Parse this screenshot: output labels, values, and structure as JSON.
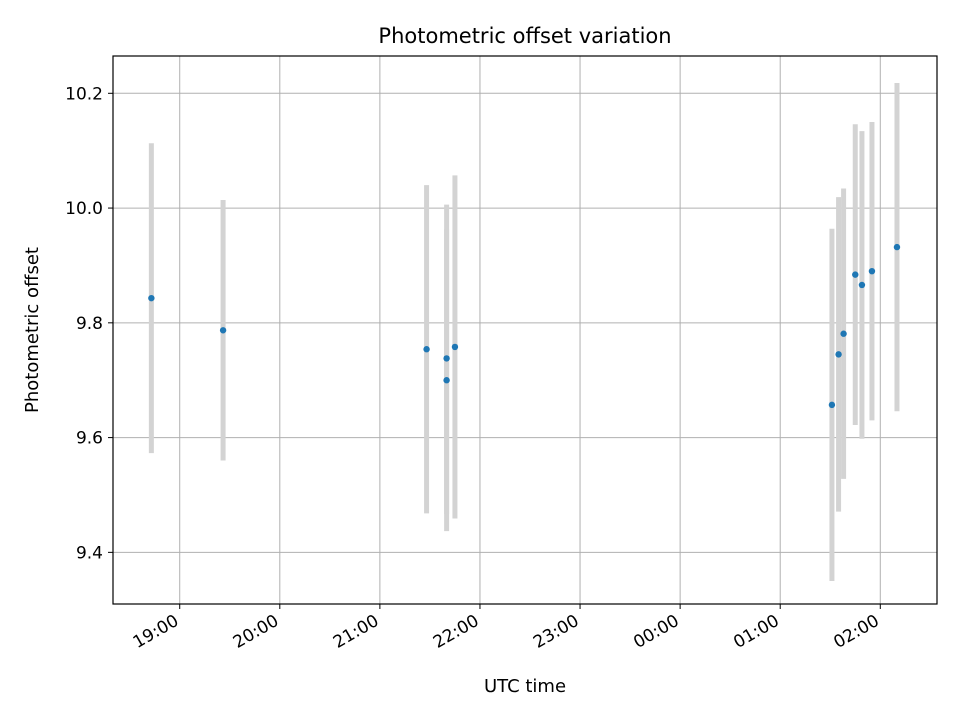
{
  "chart_data": {
    "type": "scatter",
    "title": "Photometric offset variation",
    "xlabel": "UTC time",
    "ylabel": "Photometric offset",
    "x_unit": "UTC time of night (hours after 00:00 of first date; values past 24 are after midnight)",
    "xlim": [
      "18:20",
      "02:34"
    ],
    "ylim": [
      9.31,
      10.265
    ],
    "grid": true,
    "x_ticks": [
      "19:00",
      "20:00",
      "21:00",
      "22:00",
      "23:00",
      "00:00",
      "01:00",
      "02:00"
    ],
    "y_ticks": [
      "9.4",
      "9.6",
      "9.8",
      "10.0",
      "10.2"
    ],
    "series": [
      {
        "marker_color": "#1f77b4",
        "errorbar_color": "#d3d3d3",
        "points": [
          {
            "time": "18:43",
            "y": 9.843,
            "yerr_low": 9.573,
            "yerr_high": 10.113
          },
          {
            "time": "19:26",
            "y": 9.787,
            "yerr_low": 9.56,
            "yerr_high": 10.014
          },
          {
            "time": "21:28",
            "y": 9.754,
            "yerr_low": 9.468,
            "yerr_high": 10.04
          },
          {
            "time": "21:40",
            "y": 9.738,
            "yerr_low": 9.467,
            "yerr_high": 10.006
          },
          {
            "time": "21:40",
            "y": 9.7,
            "yerr_low": 9.437,
            "yerr_high": 9.963
          },
          {
            "time": "21:45",
            "y": 9.758,
            "yerr_low": 9.459,
            "yerr_high": 10.057
          },
          {
            "time": "01:31",
            "y": 9.657,
            "yerr_low": 9.35,
            "yerr_high": 9.964
          },
          {
            "time": "01:35",
            "y": 9.745,
            "yerr_low": 9.471,
            "yerr_high": 10.019
          },
          {
            "time": "01:38",
            "y": 9.781,
            "yerr_low": 9.528,
            "yerr_high": 10.034
          },
          {
            "time": "01:45",
            "y": 9.884,
            "yerr_low": 9.622,
            "yerr_high": 10.146
          },
          {
            "time": "01:49",
            "y": 9.866,
            "yerr_low": 9.598,
            "yerr_high": 10.134
          },
          {
            "time": "01:55",
            "y": 9.89,
            "yerr_low": 9.63,
            "yerr_high": 10.15
          },
          {
            "time": "02:10",
            "y": 9.932,
            "yerr_low": 9.646,
            "yerr_high": 10.218
          }
        ]
      }
    ]
  }
}
